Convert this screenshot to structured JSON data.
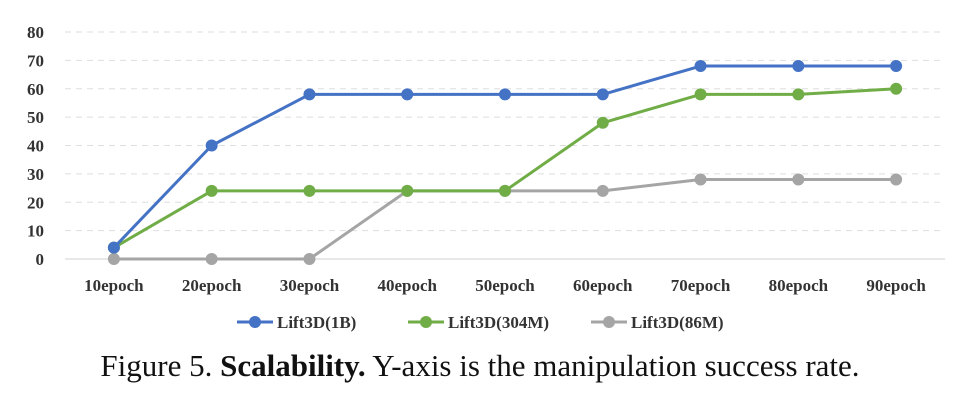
{
  "chart_data": {
    "type": "line",
    "categories": [
      "10epoch",
      "20epoch",
      "30epoch",
      "40epoch",
      "50epoch",
      "60epoch",
      "70epoch",
      "80epoch",
      "90epoch"
    ],
    "series": [
      {
        "name": "Lift3D(1B)",
        "color": "#4472c4",
        "values": [
          4,
          40,
          58,
          58,
          58,
          58,
          68,
          68,
          68
        ]
      },
      {
        "name": "Lift3D(304M)",
        "color": "#70ad47",
        "values": [
          4,
          24,
          24,
          24,
          24,
          48,
          58,
          58,
          60
        ]
      },
      {
        "name": "Lift3D(86M)",
        "color": "#a5a5a5",
        "values": [
          0,
          0,
          0,
          24,
          24,
          24,
          28,
          28,
          28
        ]
      }
    ],
    "ylim": [
      0,
      80
    ],
    "yticks": [
      0,
      10,
      20,
      30,
      40,
      50,
      60,
      70,
      80
    ],
    "grid": "horizontal-dashed",
    "legend": "bottom-center"
  },
  "caption": {
    "prefix": "Figure 5.",
    "bold": "Scalability.",
    "text": "Y-axis is the manipulation success rate."
  }
}
